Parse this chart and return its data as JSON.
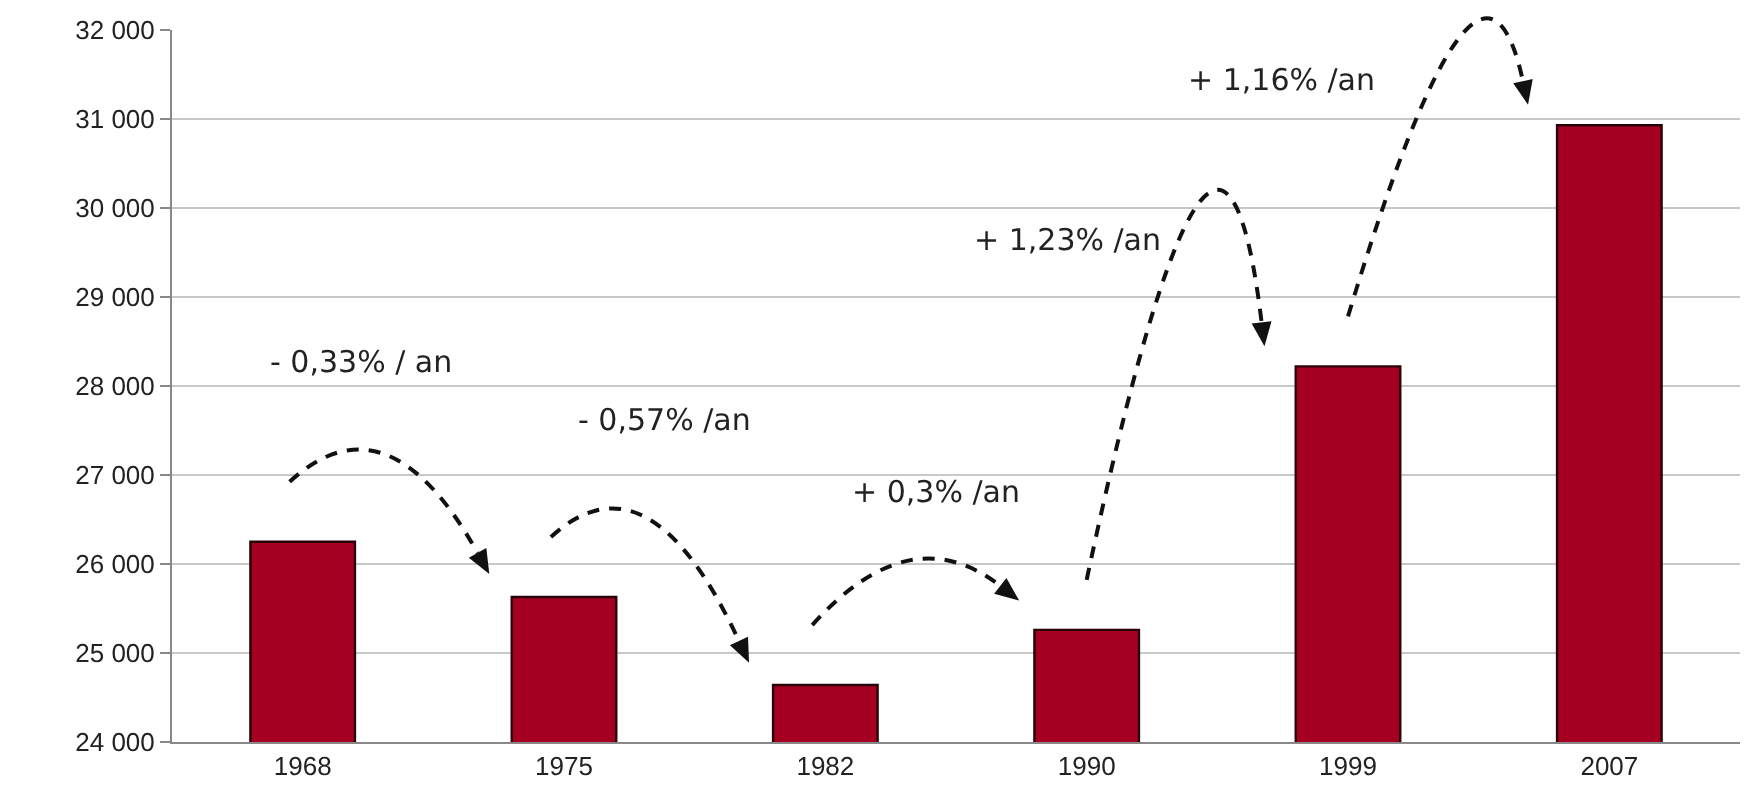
{
  "chart_data": {
    "type": "bar",
    "categories": [
      "1968",
      "1975",
      "1982",
      "1990",
      "1999",
      "2007"
    ],
    "values": [
      26250,
      25630,
      24640,
      25260,
      28220,
      30930
    ],
    "color": "#a50021",
    "ylim": [
      24000,
      32000
    ],
    "yticks": [
      {
        "value": 24000,
        "label": "24 000"
      },
      {
        "value": 25000,
        "label": "25 000"
      },
      {
        "value": 26000,
        "label": "26 000"
      },
      {
        "value": 27000,
        "label": "27 000"
      },
      {
        "value": 28000,
        "label": "28 000"
      },
      {
        "value": 29000,
        "label": "29 000"
      },
      {
        "value": 30000,
        "label": "30 000"
      },
      {
        "value": 31000,
        "label": "31 000"
      },
      {
        "value": 32000,
        "label": "32 000"
      }
    ],
    "grid": "y",
    "annotations": [
      "- 0,33% / an",
      "- 0,57% /an",
      "+ 0,3% /an",
      "+ 1,23% /an",
      "+ 1,16% /an"
    ]
  }
}
